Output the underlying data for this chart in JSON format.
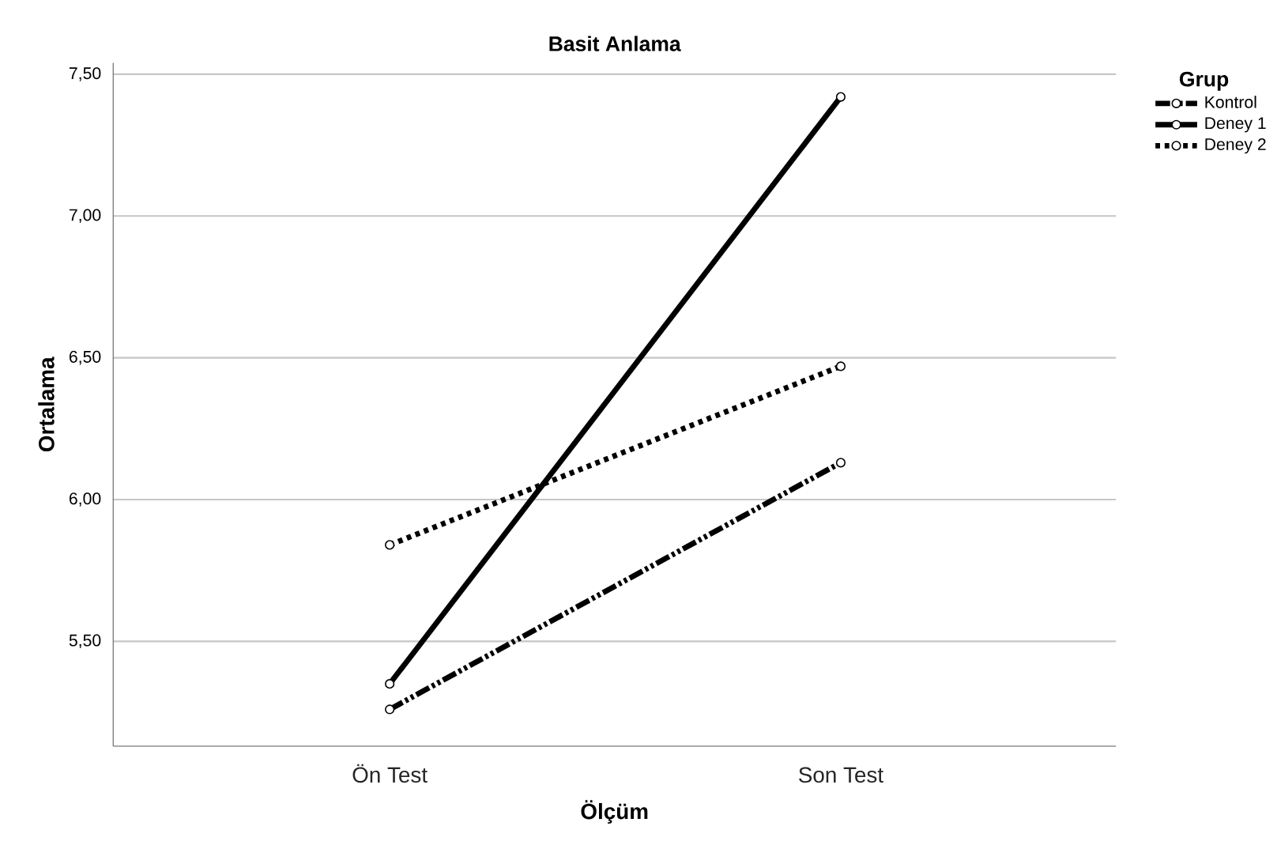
{
  "chart_data": {
    "type": "line",
    "title": "Basit Anlama",
    "xlabel": "Ölçüm",
    "ylabel": "Ortalama",
    "legend_title": "Grup",
    "categories": [
      "Ön Test",
      "Son Test"
    ],
    "series": [
      {
        "name": "Kontrol",
        "color": "#000000",
        "line_style": "dashed",
        "values": [
          5.26,
          6.13
        ]
      },
      {
        "name": "Deney 1",
        "color": "#000000",
        "line_style": "solid",
        "values": [
          5.35,
          7.42
        ]
      },
      {
        "name": "Deney 2",
        "color": "#000000",
        "line_style": "dotted",
        "values": [
          5.84,
          6.47
        ]
      }
    ],
    "ylim": [
      5.13,
      7.54
    ],
    "yticks": [
      {
        "value": 5.5,
        "label": "5,50"
      },
      {
        "value": 6.0,
        "label": "6,00"
      },
      {
        "value": 6.5,
        "label": "6,50"
      },
      {
        "value": 7.0,
        "label": "7,00"
      },
      {
        "value": 7.5,
        "label": "7,50"
      }
    ],
    "grid": "y",
    "legend": "top right",
    "marker": "circle"
  }
}
